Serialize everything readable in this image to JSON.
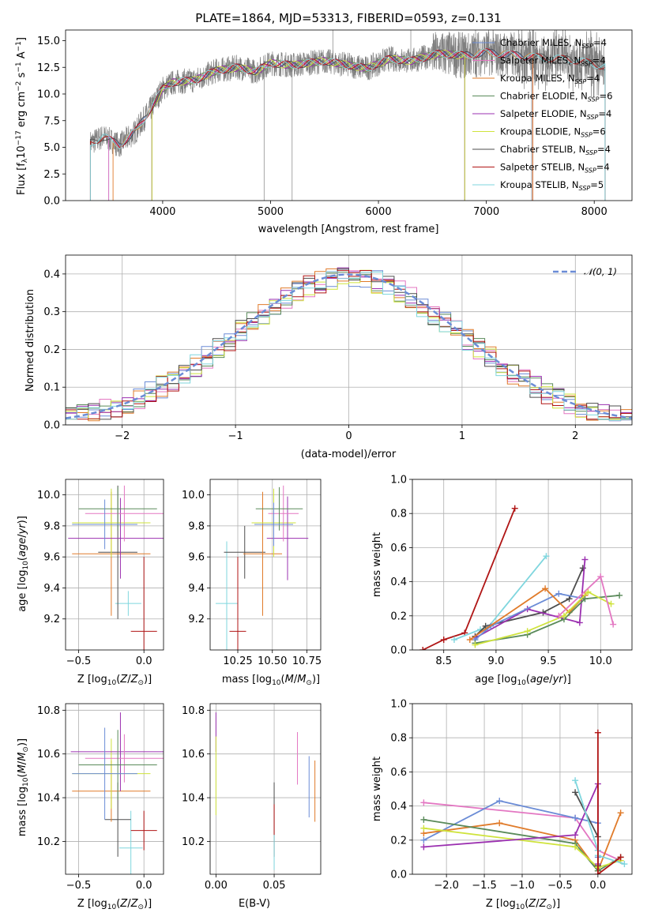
{
  "chart_data": [
    {
      "id": "spectrum",
      "type": "line",
      "title": "PLATE=1864, MJD=53313, FIBERID=0593, z=0.131",
      "xlabel": "wavelength [Angstrom, rest frame]",
      "ylabel": "Flux [f_λ10^-17 erg cm^-2 s^-1 A^-1]",
      "xlim": [
        3100,
        8350
      ],
      "ylim": [
        0,
        16
      ],
      "xticks": [
        4000,
        5000,
        6000,
        7000,
        8000
      ],
      "yticks": [
        0.0,
        2.5,
        5.0,
        7.5,
        10.0,
        12.5,
        15.0
      ],
      "grid": false,
      "legend_position": "upper right",
      "data_color": "#808080",
      "continuum": [
        [
          3330,
          5.4
        ],
        [
          3450,
          6.0
        ],
        [
          3600,
          5.2
        ],
        [
          3750,
          6.5
        ],
        [
          3900,
          8.8
        ],
        [
          4000,
          10.5
        ],
        [
          4100,
          11.1
        ],
        [
          4300,
          11.3
        ],
        [
          4500,
          12.2
        ],
        [
          4700,
          12.5
        ],
        [
          4860,
          12.1
        ],
        [
          5000,
          12.9
        ],
        [
          5200,
          12.7
        ],
        [
          5500,
          13.1
        ],
        [
          5890,
          12.4
        ],
        [
          6100,
          13.3
        ],
        [
          6300,
          13.1
        ],
        [
          6563,
          13.8
        ],
        [
          6800,
          13.6
        ],
        [
          7000,
          13.9
        ],
        [
          7400,
          13.5
        ],
        [
          7800,
          13.2
        ],
        [
          8100,
          12.6
        ]
      ],
      "series": [
        {
          "name": "Chabrier MILES, N_SSP=4",
          "label_main": "Chabrier MILES, N",
          "label_sub": "SSP",
          "label_val": "=4",
          "color": "#6b8cd6",
          "xmin": 3500,
          "xmax": 7430
        },
        {
          "name": "Salpeter MILES, N_SSP=4",
          "label_main": "Salpeter MILES, N",
          "label_sub": "SSP",
          "label_val": "=4",
          "color": "#e377c2",
          "xmin": 3500,
          "xmax": 7430
        },
        {
          "name": "Kroupa MILES, N_SSP=4",
          "label_main": "Kroupa MILES, N",
          "label_sub": "SSP",
          "label_val": "=4",
          "color": "#e07b2a",
          "xmin": 3540,
          "xmax": 7430
        },
        {
          "name": "Chabrier ELODIE, N_SSP=6",
          "label_main": "Chabrier ELODIE, N",
          "label_sub": "SSP",
          "label_val": "=6",
          "color": "#5a8a5a",
          "xmin": 3900,
          "xmax": 6800
        },
        {
          "name": "Salpeter ELODIE, N_SSP=4",
          "label_main": "Salpeter ELODIE, N",
          "label_sub": "SSP",
          "label_val": "=4",
          "color": "#9b30b0",
          "xmin": 3900,
          "xmax": 6800
        },
        {
          "name": "Kroupa ELODIE, N_SSP=6",
          "label_main": "Kroupa ELODIE, N",
          "label_sub": "SSP",
          "label_val": "=6",
          "color": "#cfe33c",
          "xmin": 3900,
          "xmax": 6800
        },
        {
          "name": "Chabrier STELIB, N_SSP=4",
          "label_main": "Chabrier STELIB, N",
          "label_sub": "SSP",
          "label_val": "=4",
          "color": "#4d4d4d",
          "xmin": 3330,
          "xmax": 8100
        },
        {
          "name": "Salpeter STELIB, N_SSP=4",
          "label_main": "Salpeter STELIB, N",
          "label_sub": "SSP",
          "label_val": "=4",
          "color": "#b01515",
          "xmin": 3330,
          "xmax": 8100
        },
        {
          "name": "Kroupa STELIB, N_SSP=5",
          "label_main": "Kroupa STELIB, N",
          "label_sub": "SSP",
          "label_val": "=5",
          "color": "#7fd6de",
          "xmin": 3330,
          "xmax": 8100
        }
      ]
    },
    {
      "id": "residuals",
      "type": "bar",
      "xlabel": "(data-model)/error",
      "ylabel": "Normed distribution",
      "xlim": [
        -2.5,
        2.5
      ],
      "ylim": [
        0,
        0.45
      ],
      "xticks": [
        -2,
        -1,
        0,
        1,
        2
      ],
      "yticks": [
        0.0,
        0.1,
        0.2,
        0.3,
        0.4
      ],
      "grid": true,
      "legend": "N(0,1)",
      "legend_position": "upper right",
      "bin_width": 0.1,
      "note": "Step histograms, one per model, colors as in the spectrum legend",
      "gaussian": {
        "mean": 0,
        "sigma": 1,
        "color": "#6b8cd6"
      }
    },
    {
      "id": "age_vs_Z",
      "type": "scatter",
      "xlabel": "Z [log10(Z/Z_sun)]",
      "ylabel": "age [log10(age/yr)]",
      "xlim": [
        -0.6,
        0.15
      ],
      "ylim": [
        9.0,
        10.1
      ],
      "xticks": [
        -0.5,
        0.0
      ],
      "yticks": [
        9.2,
        9.4,
        9.6,
        9.8,
        10.0
      ],
      "grid": true,
      "points": [
        {
          "x": -0.12,
          "y": 9.3,
          "xerr": 0.1,
          "yerr": 0.08,
          "color": "#7fd6de"
        },
        {
          "x": -0.2,
          "y": 9.63,
          "xerr": 0.15,
          "yerr": 0.43,
          "color": "#4d4d4d"
        },
        {
          "x": 0.0,
          "y": 9.12,
          "xerr": 0.1,
          "yerr": 0.48,
          "color": "#b01515"
        },
        {
          "x": -0.25,
          "y": 9.62,
          "xerr": 0.3,
          "yerr": 0.4,
          "color": "#e07b2a"
        },
        {
          "x": -0.25,
          "y": 9.82,
          "xerr": 0.3,
          "yerr": 0.22,
          "color": "#cfe33c"
        },
        {
          "x": -0.18,
          "y": 9.72,
          "xerr": 0.4,
          "yerr": 0.26,
          "color": "#9b30b0"
        },
        {
          "x": -0.15,
          "y": 9.88,
          "xerr": 0.3,
          "yerr": 0.18,
          "color": "#e377c2"
        },
        {
          "x": -0.2,
          "y": 9.91,
          "xerr": 0.3,
          "yerr": 0.14,
          "color": "#5a8a5a"
        },
        {
          "x": -0.3,
          "y": 9.81,
          "xerr": 0.25,
          "yerr": 0.16,
          "color": "#6b8cd6"
        }
      ]
    },
    {
      "id": "age_vs_mass",
      "type": "scatter",
      "xlabel": "mass [log10(M/M_sun)]",
      "ylabel": "",
      "xlim": [
        10.05,
        10.85
      ],
      "ylim": [
        9.0,
        10.1
      ],
      "xticks": [
        10.25,
        10.5,
        10.75
      ],
      "yticks": [
        9.2,
        9.4,
        9.6,
        9.8,
        10.0
      ],
      "grid": true,
      "points": [
        {
          "x": 10.17,
          "y": 9.3,
          "xerr": 0.08,
          "yerr": 0.4,
          "color": "#7fd6de"
        },
        {
          "x": 10.3,
          "y": 9.63,
          "xerr": 0.15,
          "yerr": 0.17,
          "color": "#4d4d4d"
        },
        {
          "x": 10.25,
          "y": 9.12,
          "xerr": 0.06,
          "yerr": 0.48,
          "color": "#b01515"
        },
        {
          "x": 10.43,
          "y": 9.62,
          "xerr": 0.14,
          "yerr": 0.4,
          "color": "#e07b2a"
        },
        {
          "x": 10.51,
          "y": 9.82,
          "xerr": 0.16,
          "yerr": 0.22,
          "color": "#cfe33c"
        },
        {
          "x": 10.61,
          "y": 9.72,
          "xerr": 0.15,
          "yerr": 0.27,
          "color": "#9b30b0"
        },
        {
          "x": 10.58,
          "y": 9.88,
          "xerr": 0.11,
          "yerr": 0.18,
          "color": "#e377c2"
        },
        {
          "x": 10.55,
          "y": 9.91,
          "xerr": 0.17,
          "yerr": 0.14,
          "color": "#5a8a5a"
        },
        {
          "x": 10.51,
          "y": 9.81,
          "xerr": 0.14,
          "yerr": 0.14,
          "color": "#6b8cd6"
        }
      ]
    },
    {
      "id": "weight_vs_age",
      "type": "line",
      "xlabel": "age [log10(age/yr)]",
      "ylabel": "mass weight",
      "xlim": [
        8.2,
        10.3
      ],
      "ylim": [
        0,
        1.0
      ],
      "xticks": [
        8.5,
        9.0,
        9.5,
        10.0
      ],
      "yticks": [
        0.0,
        0.2,
        0.4,
        0.6,
        0.8,
        1.0
      ],
      "grid": true,
      "series": [
        {
          "color": "#b01515",
          "points": [
            [
              8.3,
              0.0
            ],
            [
              8.5,
              0.06
            ],
            [
              8.7,
              0.1
            ],
            [
              9.18,
              0.83
            ]
          ]
        },
        {
          "color": "#7fd6de",
          "points": [
            [
              8.6,
              0.06
            ],
            [
              8.85,
              0.12
            ],
            [
              8.92,
              0.13
            ],
            [
              9.48,
              0.55
            ]
          ]
        },
        {
          "color": "#4d4d4d",
          "points": [
            [
              8.8,
              0.08
            ],
            [
              8.9,
              0.14
            ],
            [
              9.45,
              0.22
            ],
            [
              9.7,
              0.3
            ],
            [
              9.83,
              0.48
            ]
          ]
        },
        {
          "color": "#9b30b0",
          "points": [
            [
              8.8,
              0.07
            ],
            [
              9.3,
              0.24
            ],
            [
              9.8,
              0.16
            ],
            [
              9.85,
              0.53
            ]
          ]
        },
        {
          "color": "#6b8cd6",
          "points": [
            [
              8.8,
              0.06
            ],
            [
              8.95,
              0.14
            ],
            [
              9.6,
              0.33
            ],
            [
              9.85,
              0.3
            ]
          ]
        },
        {
          "color": "#e07b2a",
          "points": [
            [
              8.75,
              0.06
            ],
            [
              9.47,
              0.36
            ],
            [
              9.7,
              0.22
            ],
            [
              9.85,
              0.32
            ]
          ]
        },
        {
          "color": "#5a8a5a",
          "points": [
            [
              8.8,
              0.04
            ],
            [
              9.3,
              0.09
            ],
            [
              9.65,
              0.18
            ],
            [
              9.85,
              0.3
            ],
            [
              10.18,
              0.32
            ]
          ]
        },
        {
          "color": "#cfe33c",
          "points": [
            [
              8.8,
              0.03
            ],
            [
              9.3,
              0.11
            ],
            [
              9.65,
              0.2
            ],
            [
              9.88,
              0.34
            ],
            [
              10.1,
              0.27
            ]
          ]
        },
        {
          "color": "#e377c2",
          "points": [
            [
              9.6,
              0.2
            ],
            [
              10.0,
              0.43
            ],
            [
              10.12,
              0.15
            ]
          ]
        }
      ]
    },
    {
      "id": "mass_vs_Z",
      "type": "scatter",
      "xlabel": "Z [log10(Z/Z_sun)]",
      "ylabel": "mass [log10(M/M_sun)]",
      "xlim": [
        -0.6,
        0.15
      ],
      "ylim": [
        10.05,
        10.83
      ],
      "xticks": [
        -0.5,
        0.0
      ],
      "yticks": [
        10.2,
        10.4,
        10.6,
        10.8
      ],
      "grid": true,
      "points": [
        {
          "x": -0.1,
          "y": 10.17,
          "xerr": 0.09,
          "yerr": 0.17,
          "color": "#7fd6de"
        },
        {
          "x": -0.2,
          "y": 10.3,
          "xerr": 0.1,
          "yerr": 0.17,
          "color": "#4d4d4d"
        },
        {
          "x": 0.0,
          "y": 10.25,
          "xerr": 0.1,
          "yerr": 0.09,
          "color": "#b01515"
        },
        {
          "x": -0.25,
          "y": 10.43,
          "xerr": 0.3,
          "yerr": 0.14,
          "color": "#e07b2a"
        },
        {
          "x": -0.25,
          "y": 10.51,
          "xerr": 0.3,
          "yerr": 0.16,
          "color": "#cfe33c"
        },
        {
          "x": -0.18,
          "y": 10.61,
          "xerr": 0.38,
          "yerr": 0.18,
          "color": "#9b30b0"
        },
        {
          "x": -0.15,
          "y": 10.58,
          "xerr": 0.3,
          "yerr": 0.11,
          "color": "#e377c2"
        },
        {
          "x": -0.2,
          "y": 10.55,
          "xerr": 0.3,
          "yerr": 0.16,
          "color": "#5a8a5a"
        },
        {
          "x": -0.3,
          "y": 10.51,
          "xerr": 0.25,
          "yerr": 0.21,
          "color": "#6b8cd6"
        }
      ]
    },
    {
      "id": "mass_vs_EBV",
      "type": "scatter",
      "xlabel": "E(B-V)",
      "ylabel": "",
      "xlim": [
        -0.005,
        0.09
      ],
      "ylim": [
        10.05,
        10.83
      ],
      "xticks": [
        0.0,
        0.05
      ],
      "yticks": [
        10.2,
        10.4,
        10.6,
        10.8
      ],
      "grid": true,
      "points": [
        {
          "x": 0.0,
          "y": 10.7,
          "xerr": 0.0,
          "yerr": 0.09,
          "color": "#9b30b0"
        },
        {
          "x": 0.0,
          "y": 10.5,
          "xerr": 0.0,
          "yerr": 0.18,
          "color": "#cfe33c"
        },
        {
          "x": 0.05,
          "y": 10.3,
          "xerr": 0.0,
          "yerr": 0.17,
          "color": "#4d4d4d"
        },
        {
          "x": 0.05,
          "y": 10.25,
          "xerr": 0.0,
          "yerr": 0.12,
          "color": "#b01515"
        },
        {
          "x": 0.05,
          "y": 10.15,
          "xerr": 0.0,
          "yerr": 0.08,
          "color": "#7fd6de"
        },
        {
          "x": 0.07,
          "y": 10.58,
          "xerr": 0.0,
          "yerr": 0.12,
          "color": "#e377c2"
        },
        {
          "x": 0.08,
          "y": 10.45,
          "xerr": 0.0,
          "yerr": 0.14,
          "color": "#6b8cd6"
        },
        {
          "x": 0.085,
          "y": 10.43,
          "xerr": 0.0,
          "yerr": 0.14,
          "color": "#e07b2a"
        }
      ]
    },
    {
      "id": "weight_vs_Z",
      "type": "line",
      "xlabel": "Z [log10(Z/Z_sun)]",
      "ylabel": "mass weight",
      "xlim": [
        -2.45,
        0.45
      ],
      "ylim": [
        0,
        1.0
      ],
      "xticks": [
        -2.0,
        -1.5,
        -1.0,
        -0.5,
        0.0
      ],
      "yticks": [
        0.0,
        0.2,
        0.4,
        0.6,
        0.8,
        1.0
      ],
      "grid": true,
      "series": [
        {
          "color": "#e377c2",
          "points": [
            [
              -2.3,
              0.42
            ],
            [
              -0.3,
              0.33
            ],
            [
              0.0,
              0.14
            ],
            [
              0.3,
              0.08
            ]
          ]
        },
        {
          "color": "#6b8cd6",
          "points": [
            [
              -2.3,
              0.2
            ],
            [
              -1.3,
              0.43
            ],
            [
              -0.3,
              0.33
            ],
            [
              0.0,
              0.3
            ],
            [
              0.0,
              0.1
            ]
          ]
        },
        {
          "color": "#e07b2a",
          "points": [
            [
              -2.3,
              0.24
            ],
            [
              -1.3,
              0.3
            ],
            [
              -0.3,
              0.2
            ],
            [
              0.0,
              0.02
            ],
            [
              0.3,
              0.36
            ]
          ]
        },
        {
          "color": "#5a8a5a",
          "points": [
            [
              -2.3,
              0.32
            ],
            [
              -0.3,
              0.18
            ],
            [
              0.0,
              0.02
            ],
            [
              0.3,
              0.1
            ]
          ]
        },
        {
          "color": "#cfe33c",
          "points": [
            [
              -2.3,
              0.27
            ],
            [
              -0.3,
              0.16
            ],
            [
              0.0,
              0.04
            ],
            [
              0.3,
              0.08
            ]
          ]
        },
        {
          "color": "#9b30b0",
          "points": [
            [
              -2.3,
              0.16
            ],
            [
              -0.3,
              0.23
            ],
            [
              0.0,
              0.53
            ],
            [
              0.0,
              0.06
            ]
          ]
        },
        {
          "color": "#4d4d4d",
          "points": [
            [
              -0.3,
              0.48
            ],
            [
              0.0,
              0.22
            ],
            [
              0.0,
              0.05
            ]
          ]
        },
        {
          "color": "#7fd6de",
          "points": [
            [
              -0.3,
              0.55
            ],
            [
              0.0,
              0.14
            ],
            [
              0.0,
              0.11
            ],
            [
              0.35,
              0.06
            ]
          ]
        },
        {
          "color": "#b01515",
          "points": [
            [
              0.0,
              0.83
            ],
            [
              0.0,
              0.0
            ],
            [
              0.3,
              0.1
            ]
          ]
        }
      ]
    }
  ]
}
